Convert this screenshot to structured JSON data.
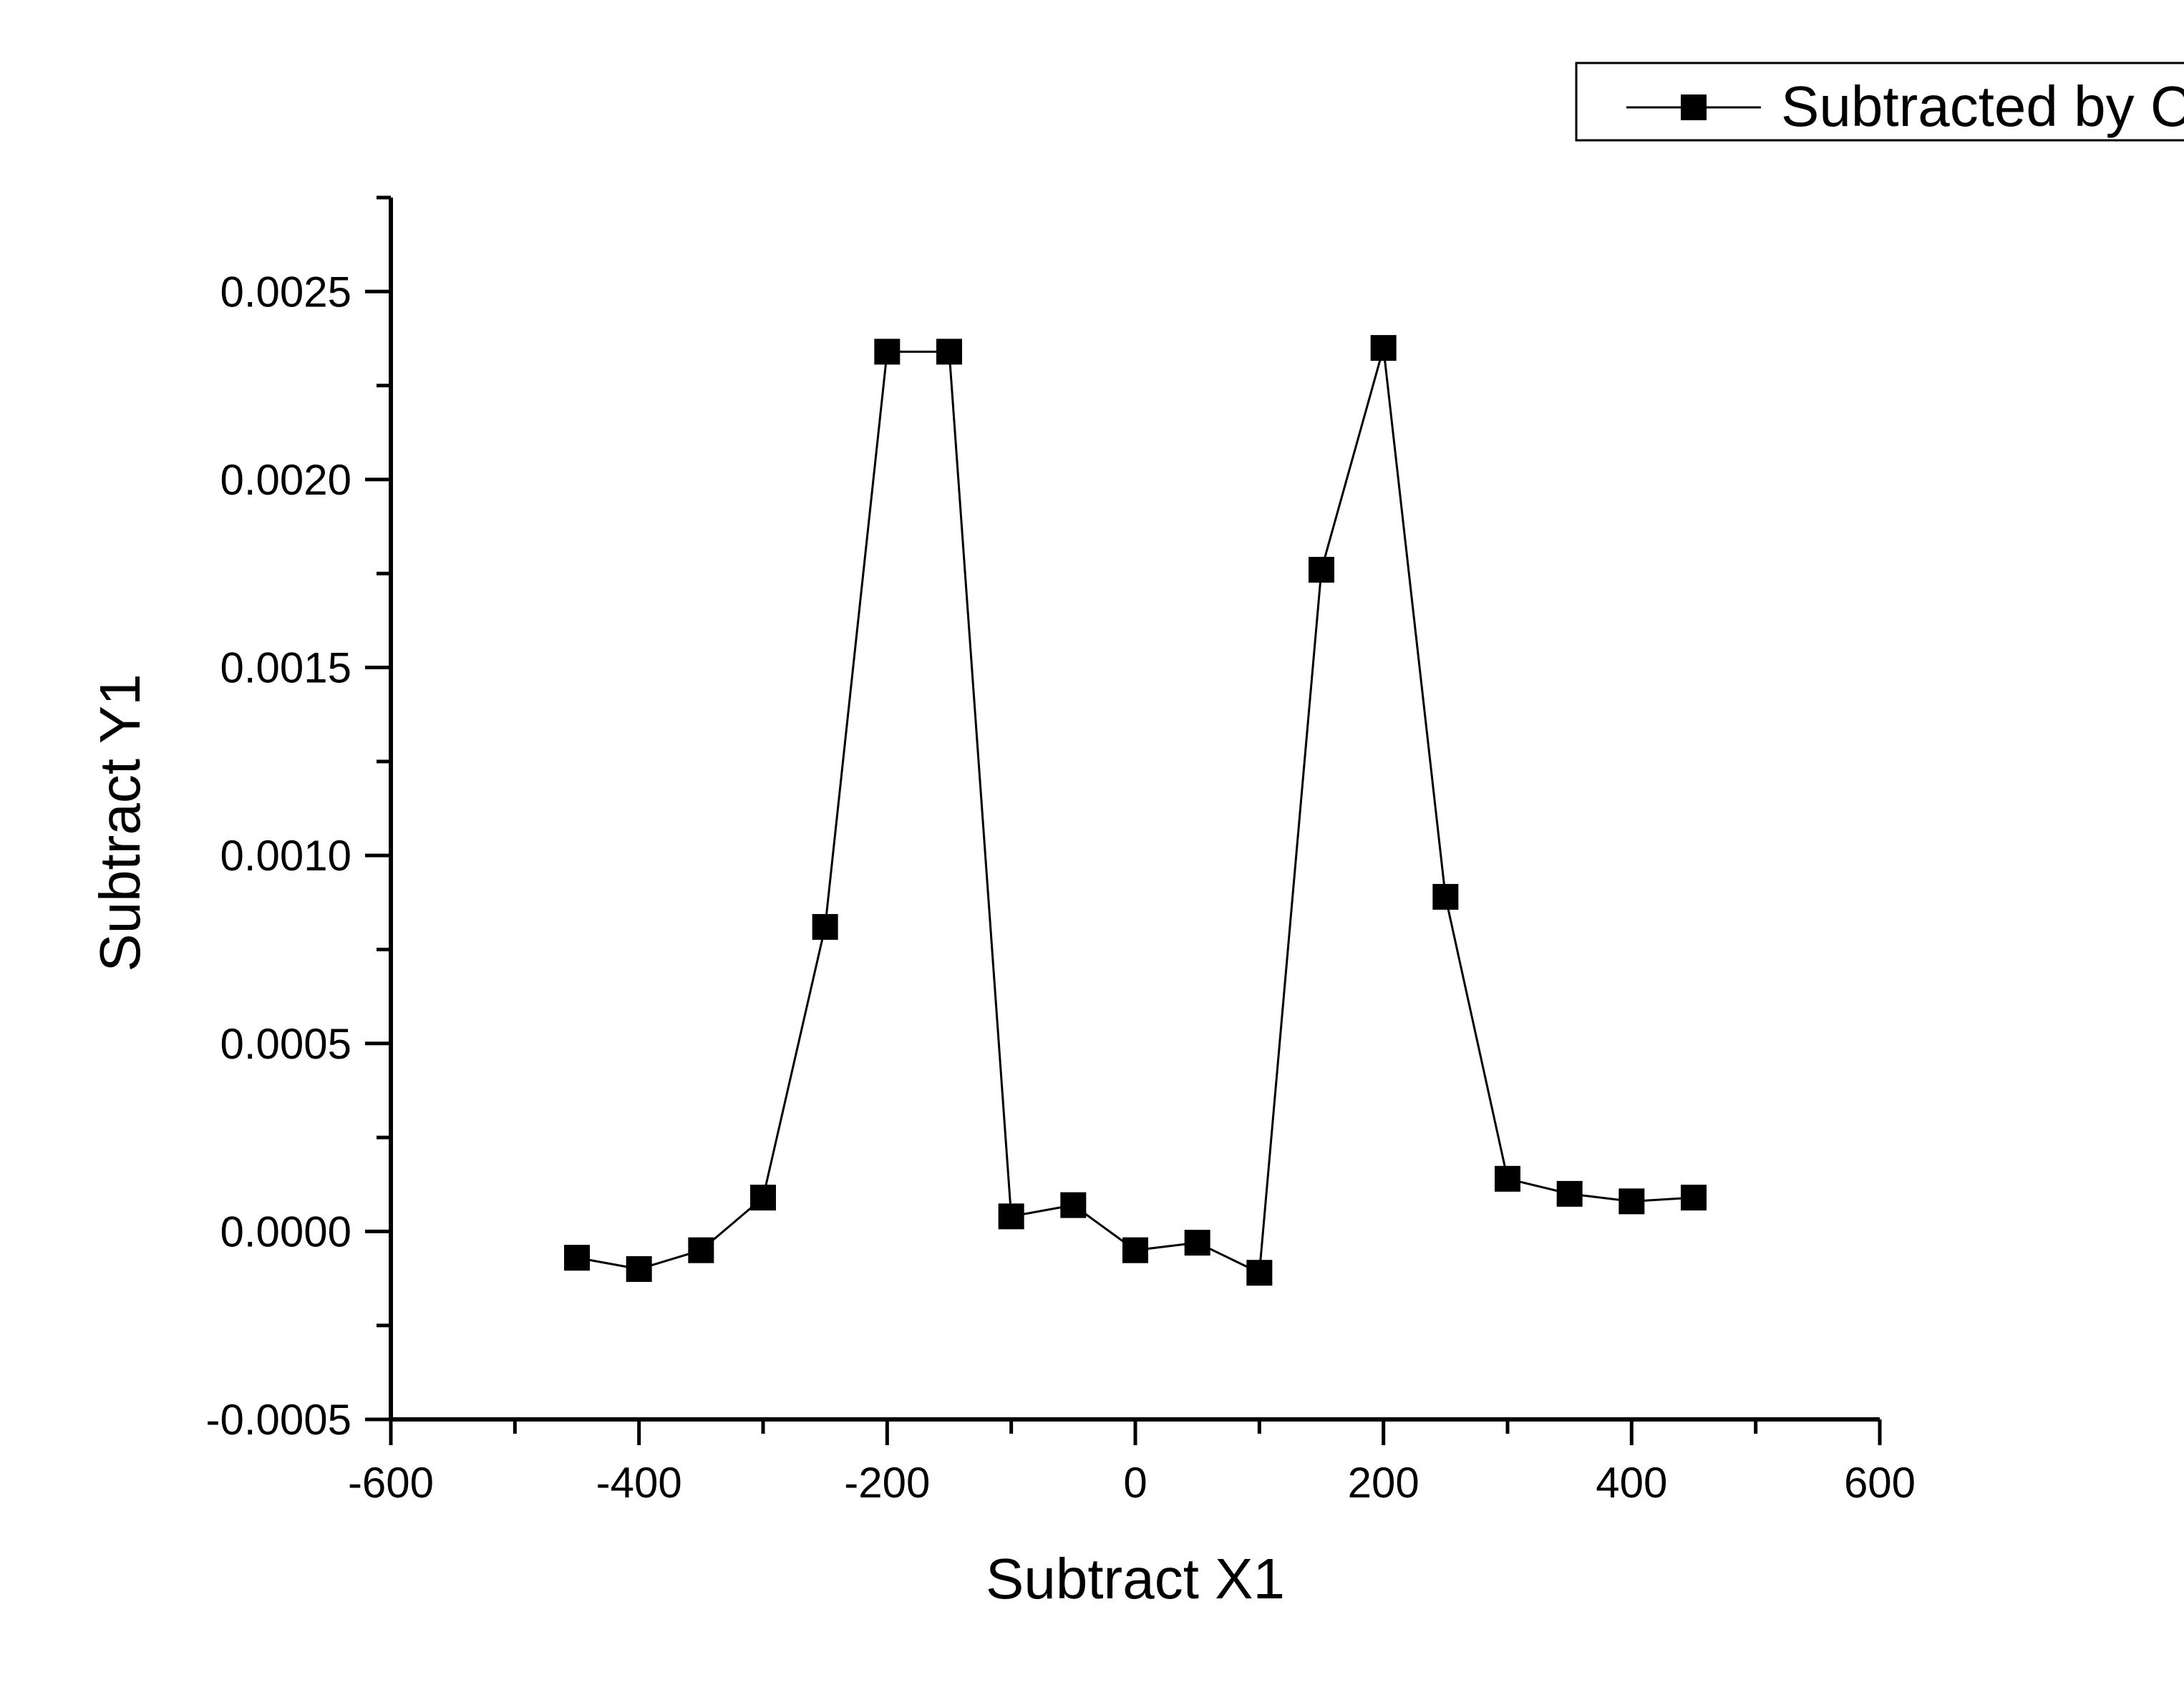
{
  "chart_data": {
    "type": "line",
    "xlabel": "Subtract X1",
    "ylabel": "Subtract Y1",
    "xlim": [
      -600,
      600
    ],
    "ylim": [
      -0.0005,
      0.00275
    ],
    "x_ticks": [
      "-600",
      "-400",
      "-200",
      "0",
      "200",
      "400",
      "600"
    ],
    "x_tick_values": [
      -600,
      -400,
      -200,
      0,
      200,
      400,
      600
    ],
    "y_ticks": [
      "-0.0005",
      "0.0000",
      "0.0005",
      "0.0010",
      "0.0015",
      "0.0020",
      "0.0025"
    ],
    "y_tick_values": [
      -0.0005,
      0,
      0.0005,
      0.001,
      0.0015,
      0.002,
      0.0025
    ],
    "grid": false,
    "legend_position": "top-right",
    "series": [
      {
        "name": "Subtracted by C",
        "marker": "square",
        "color": "#000000",
        "x": [
          -450,
          -400,
          -350,
          -300,
          -250,
          -200,
          -150,
          -100,
          -50,
          0,
          50,
          100,
          150,
          200,
          250,
          300,
          350,
          400,
          450
        ],
        "y": [
          -7e-05,
          -0.0001,
          -5e-05,
          9e-05,
          0.00081,
          0.00234,
          0.00234,
          4e-05,
          7e-05,
          -5e-05,
          -3e-05,
          -0.00011,
          0.00176,
          0.00235,
          0.00089,
          0.00014,
          0.0001,
          8e-05,
          9e-05
        ]
      }
    ]
  }
}
